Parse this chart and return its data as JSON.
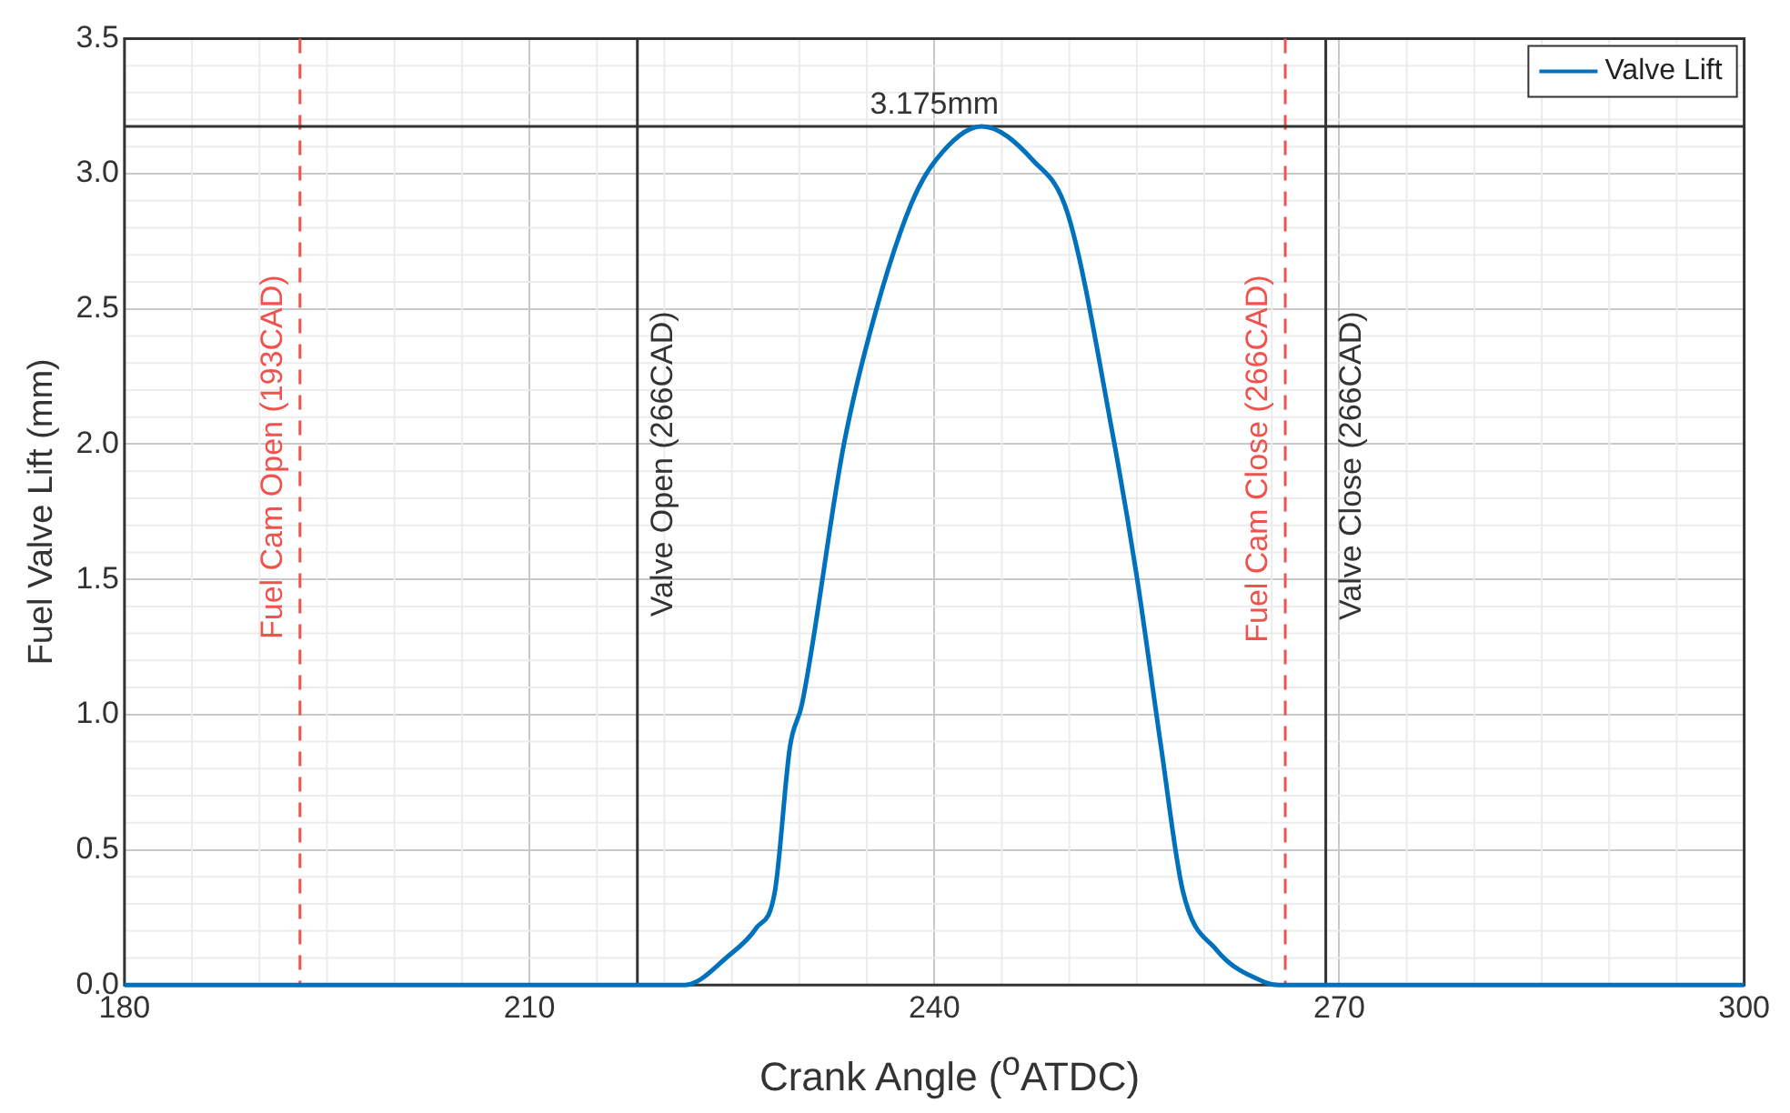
{
  "chart_data": {
    "type": "line",
    "xlabel": "Crank Angle ($^{o}$ATDC)",
    "ylabel": "Fuel Valve Lift (mm)",
    "series": [
      {
        "name": "Valve Lift",
        "color": "#0072bd",
        "x": [
          180,
          221.5,
          224.8,
          226.8,
          228.2,
          229.3,
          230.2,
          233.3,
          235.6,
          238.3,
          240.1,
          243.5,
          247.3,
          249.9,
          253.2,
          255,
          256.8,
          258.4,
          260.9,
          264.5,
          265.5,
          300
        ],
        "values": [
          0,
          0,
          0.11,
          0.21,
          0.35,
          0.88,
          1.04,
          2.0,
          2.48,
          2.89,
          3.05,
          3.175,
          3.05,
          2.85,
          2.04,
          1.51,
          0.88,
          0.35,
          0.13,
          0.01,
          0,
          0
        ]
      }
    ],
    "xlim": [
      180,
      300
    ],
    "xticks": [
      180,
      210,
      240,
      270,
      300
    ],
    "ylim": [
      0,
      3.5
    ],
    "yticks": [
      {
        "value": 0,
        "label": "0.0"
      },
      {
        "value": 0.5,
        "label": "0.5"
      },
      {
        "value": 1,
        "label": "1.0"
      },
      {
        "value": 1.5,
        "label": "1.5"
      },
      {
        "value": 2,
        "label": "2.0"
      },
      {
        "value": 2.5,
        "label": "2.5"
      },
      {
        "value": 3,
        "label": "3.0"
      },
      {
        "value": 3.5,
        "label": "3.5"
      }
    ],
    "ref_lines": [
      {
        "axis": "x",
        "value": 193,
        "label": "Fuel Cam Open (193CAD)",
        "color": "#f0524d",
        "line_style": "dashed"
      },
      {
        "axis": "x",
        "value": 218,
        "label": "Valve Open (266CAD)",
        "color": "#333333",
        "line_style": "solid"
      },
      {
        "axis": "x",
        "value": 266,
        "label": "Fuel Cam Close (266CAD)",
        "color": "#f0524d",
        "line_style": "dashed"
      },
      {
        "axis": "x",
        "value": 269,
        "label": "Valve Close (266CAD)",
        "color": "#333333",
        "line_style": "solid"
      },
      {
        "axis": "y",
        "value": 3.175,
        "label": "3.175mm",
        "color": "#333333",
        "line_style": "solid"
      }
    ],
    "grid": true,
    "legend": "top right",
    "marker": "none",
    "line_style": "solid"
  }
}
